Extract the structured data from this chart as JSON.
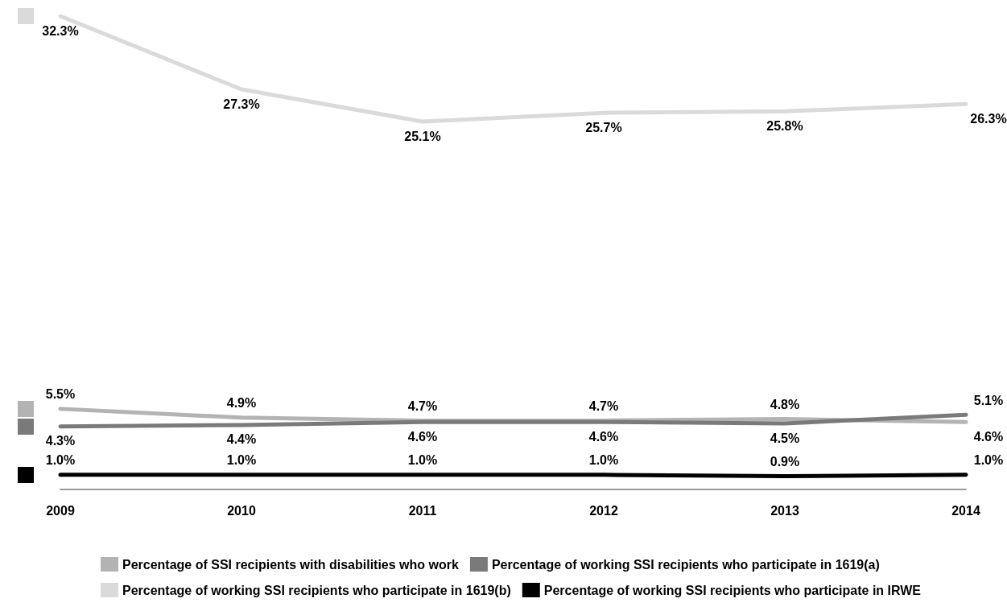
{
  "chart_data": {
    "type": "line",
    "categories": [
      "2009",
      "2010",
      "2011",
      "2012",
      "2013",
      "2014"
    ],
    "series": [
      {
        "name": "Percentage of SSI recipients with disabilities who work",
        "color": "#b3b3b3",
        "values": [
          5.5,
          4.9,
          4.7,
          4.7,
          4.8,
          4.6
        ],
        "value_labels": [
          "5.5%",
          "4.9%",
          "4.7%",
          "4.7%",
          "4.8%",
          "4.6%"
        ]
      },
      {
        "name": "Percentage of working SSI recipients who participate in 1619(a)",
        "color": "#7a7a7a",
        "values": [
          4.3,
          4.4,
          4.6,
          4.6,
          4.5,
          5.1
        ],
        "value_labels": [
          "4.3%",
          "4.4%",
          "4.6%",
          "4.6%",
          "4.5%",
          "5.1%"
        ]
      },
      {
        "name": "Percentage of working SSI recipients who participate in 1619(b)",
        "color": "#dadada",
        "values": [
          32.3,
          27.3,
          25.1,
          25.7,
          25.8,
          26.3
        ],
        "value_labels": [
          "32.3%",
          "27.3%",
          "25.1%",
          "25.7%",
          "25.8%",
          "26.3%"
        ]
      },
      {
        "name": "Percentage of working SSI recipients who participate in IRWE",
        "color": "#000000",
        "values": [
          1.0,
          1.0,
          1.0,
          1.0,
          0.9,
          1.0
        ],
        "value_labels": [
          "1.0%",
          "1.0%",
          "1.0%",
          "1.0%",
          "0.9%",
          "1.0%"
        ]
      }
    ],
    "legend": "bottom",
    "grid": false,
    "marker": "none",
    "line_style": "solid",
    "tick_labels": "x"
  }
}
